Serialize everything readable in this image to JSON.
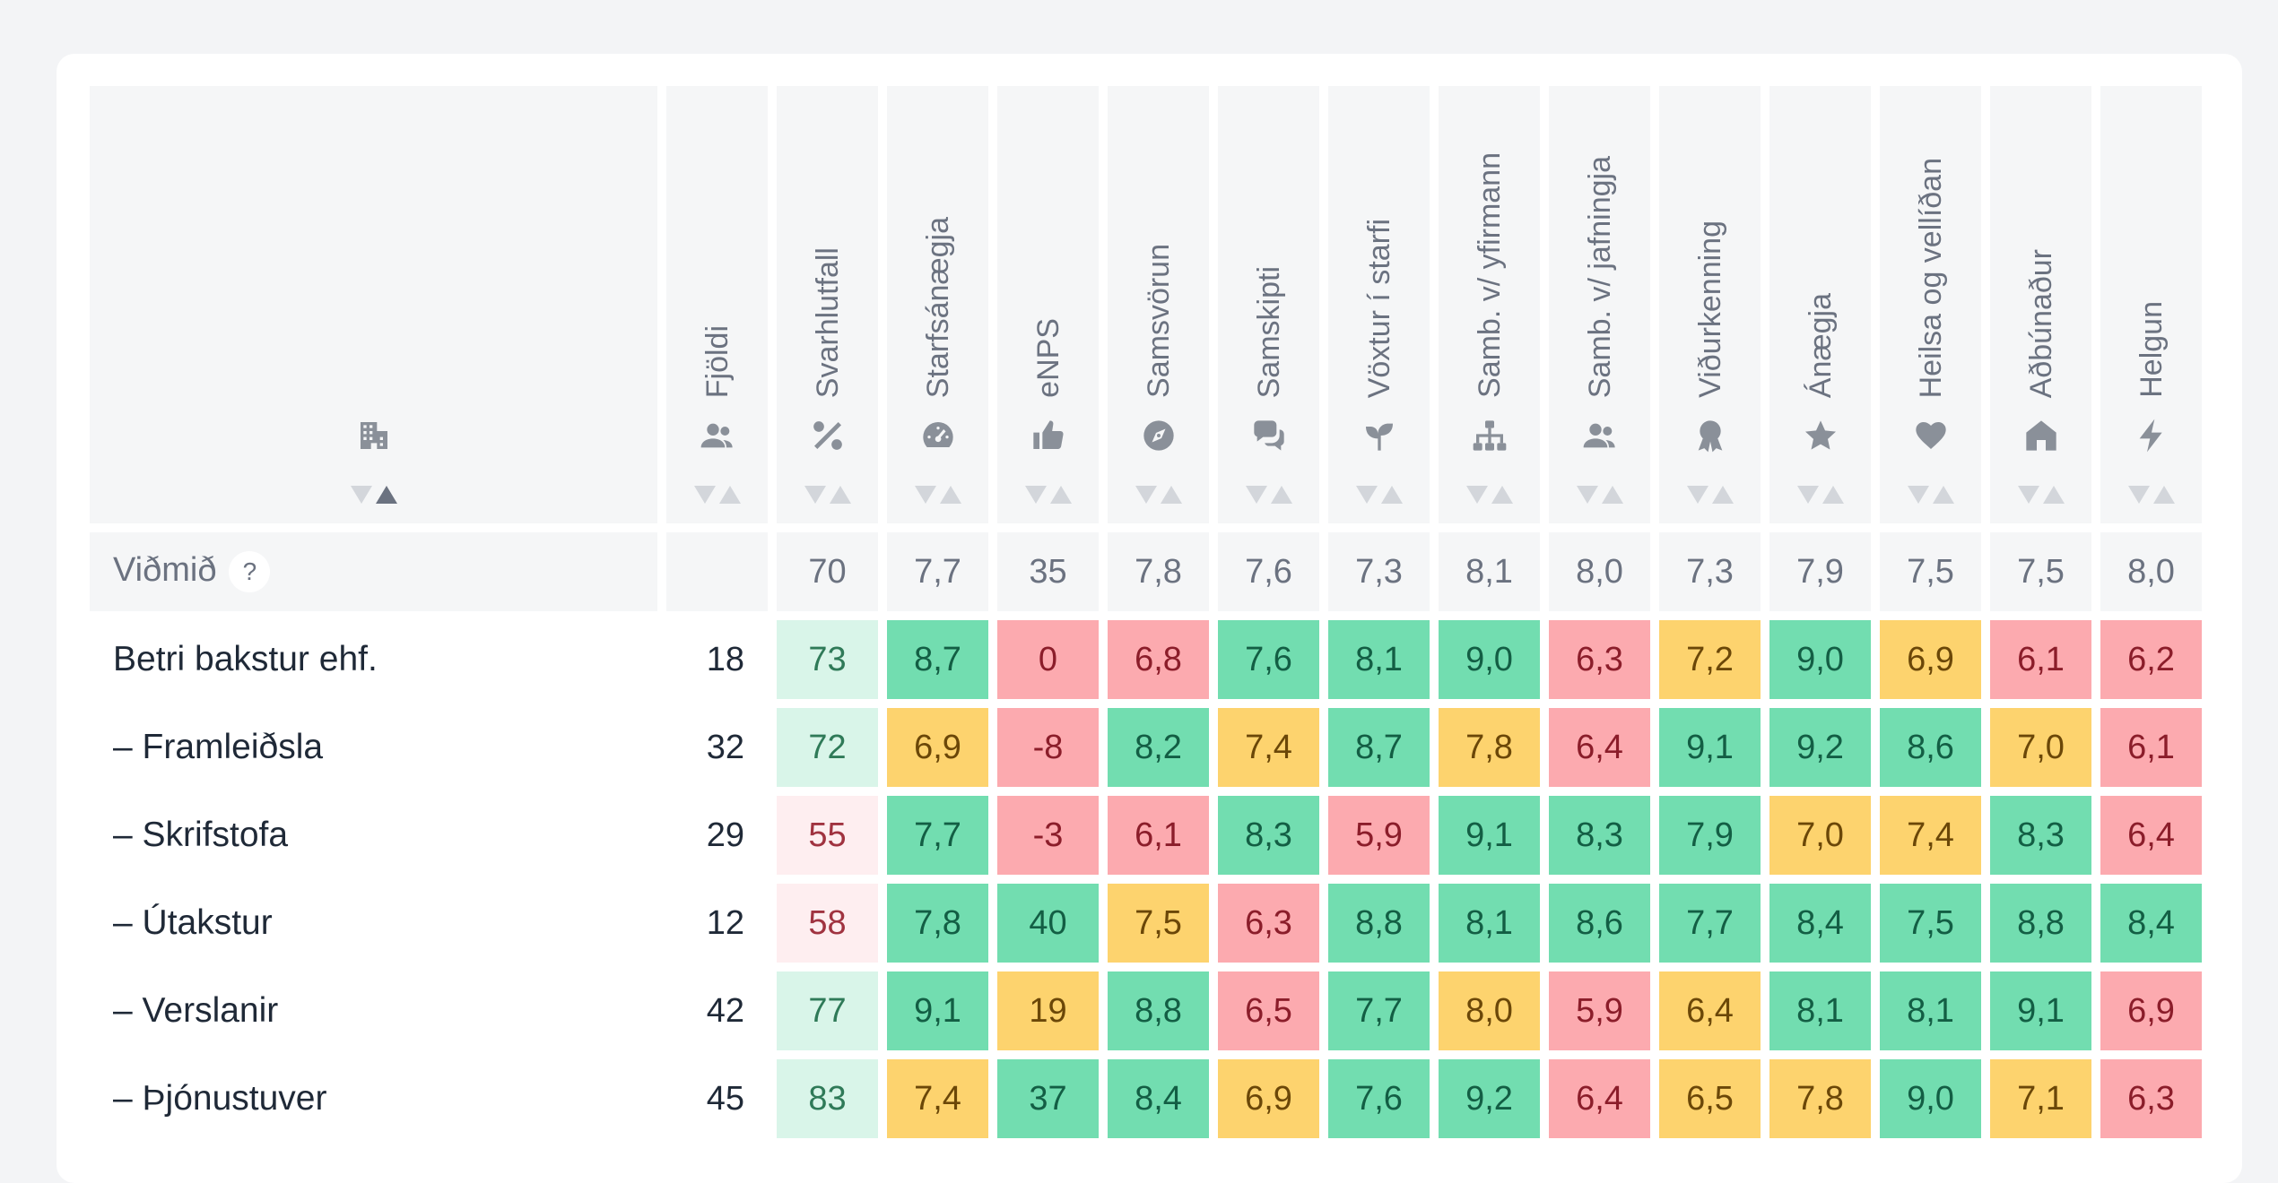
{
  "header": {
    "name_icon": "building-icon",
    "count_label": "Fjöldi",
    "count_icon": "users-icon",
    "metrics": [
      {
        "label": "Svarhlutfall",
        "icon": "percent-icon"
      },
      {
        "label": "Starfsánægja",
        "icon": "gauge-icon"
      },
      {
        "label": "eNPS",
        "icon": "thumbs-up-icon"
      },
      {
        "label": "Samsvörun",
        "icon": "compass-icon"
      },
      {
        "label": "Samskipti",
        "icon": "chat-icon"
      },
      {
        "label": "Vöxtur í starfi",
        "icon": "seedling-icon"
      },
      {
        "label": "Samb. v/ yfirmann",
        "icon": "hierarchy-icon"
      },
      {
        "label": "Samb. v/ jafningja",
        "icon": "peers-icon"
      },
      {
        "label": "Viðurkenning",
        "icon": "award-icon"
      },
      {
        "label": "Ánægja",
        "icon": "star-icon"
      },
      {
        "label": "Heilsa og vellíðan",
        "icon": "heart-icon"
      },
      {
        "label": "Aðbúnaður",
        "icon": "house-icon"
      },
      {
        "label": "Helgun",
        "icon": "bolt-icon"
      }
    ]
  },
  "benchmark": {
    "label": "Viðmið",
    "help": "?",
    "values": [
      "70",
      "7,7",
      "35",
      "7,8",
      "7,6",
      "7,3",
      "8,1",
      "8,0",
      "7,3",
      "7,9",
      "7,5",
      "7,5",
      "8,0"
    ]
  },
  "rows": [
    {
      "name": "Betri bakstur ehf.",
      "count": "18",
      "values": [
        "73",
        "8,7",
        "0",
        "6,8",
        "7,6",
        "8,1",
        "9,0",
        "6,3",
        "7,2",
        "9,0",
        "6,9",
        "6,1",
        "6,2"
      ],
      "status": [
        "lg",
        "g",
        "r",
        "r",
        "g",
        "g",
        "g",
        "r",
        "y",
        "g",
        "y",
        "r",
        "r"
      ]
    },
    {
      "name": "– Framleiðsla",
      "count": "32",
      "values": [
        "72",
        "6,9",
        "-8",
        "8,2",
        "7,4",
        "8,7",
        "7,8",
        "6,4",
        "9,1",
        "9,2",
        "8,6",
        "7,0",
        "6,1"
      ],
      "status": [
        "lg",
        "y",
        "r",
        "g",
        "y",
        "g",
        "y",
        "r",
        "g",
        "g",
        "g",
        "y",
        "r"
      ]
    },
    {
      "name": "– Skrifstofa",
      "count": "29",
      "values": [
        "55",
        "7,7",
        "-3",
        "6,1",
        "8,3",
        "5,9",
        "9,1",
        "8,3",
        "7,9",
        "7,0",
        "7,4",
        "8,3",
        "6,4"
      ],
      "status": [
        "lr",
        "g",
        "r",
        "r",
        "g",
        "r",
        "g",
        "g",
        "g",
        "y",
        "y",
        "g",
        "r"
      ]
    },
    {
      "name": "– Útakstur",
      "count": "12",
      "values": [
        "58",
        "7,8",
        "40",
        "7,5",
        "6,3",
        "8,8",
        "8,1",
        "8,6",
        "7,7",
        "8,4",
        "7,5",
        "8,8",
        "8,4"
      ],
      "status": [
        "lr",
        "g",
        "g",
        "y",
        "r",
        "g",
        "g",
        "g",
        "g",
        "g",
        "g",
        "g",
        "g"
      ]
    },
    {
      "name": "– Verslanir",
      "count": "42",
      "values": [
        "77",
        "9,1",
        "19",
        "8,8",
        "6,5",
        "7,7",
        "8,0",
        "5,9",
        "6,4",
        "8,1",
        "8,1",
        "9,1",
        "6,9"
      ],
      "status": [
        "lg",
        "g",
        "y",
        "g",
        "r",
        "g",
        "y",
        "r",
        "y",
        "g",
        "g",
        "g",
        "r"
      ]
    },
    {
      "name": "– Þjónustuver",
      "count": "45",
      "values": [
        "83",
        "7,4",
        "37",
        "8,4",
        "6,9",
        "7,6",
        "9,2",
        "6,4",
        "6,5",
        "7,8",
        "9,0",
        "7,1",
        "6,3"
      ],
      "status": [
        "lg",
        "y",
        "g",
        "g",
        "y",
        "g",
        "g",
        "r",
        "y",
        "y",
        "g",
        "y",
        "r"
      ]
    }
  ],
  "colors": {
    "good": "#72ddb0",
    "warn": "#fdd36e",
    "bad": "#fcaaaf",
    "light_good": "#d9f5e9",
    "light_bad": "#feeef0"
  }
}
